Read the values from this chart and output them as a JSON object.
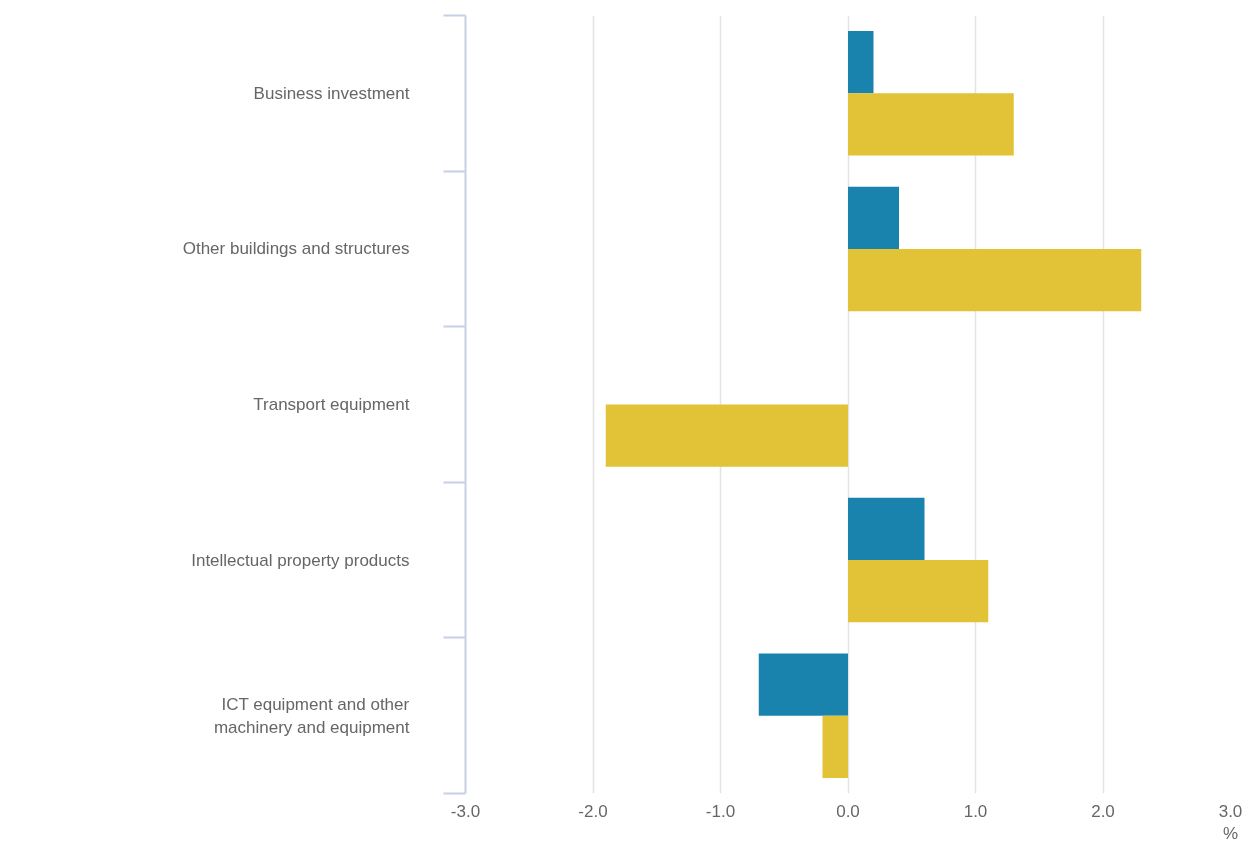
{
  "chart_data": {
    "type": "bar",
    "orientation": "horizontal",
    "xlabel": "%",
    "categories": [
      "Business investment",
      "Other buildings and structures",
      "Transport equipment",
      "Intellectual property products",
      "ICT equipment and other machinery and equipment"
    ],
    "series": [
      {
        "color": "#1a83ad",
        "values": [
          0.2,
          0.4,
          0,
          0.6,
          -0.7
        ]
      },
      {
        "color": "#e2c236",
        "values": [
          1.3,
          2.3,
          -1.9,
          1.1,
          -0.2
        ]
      }
    ],
    "xlim": [
      -3,
      3
    ],
    "xticks": [
      {
        "value": -3,
        "label": "-3.0"
      },
      {
        "value": -2,
        "label": "-2.0"
      },
      {
        "value": -1,
        "label": "-1.0"
      },
      {
        "value": 0,
        "label": "0.0"
      },
      {
        "value": 1,
        "label": "1.0"
      },
      {
        "value": 2,
        "label": "2.0"
      },
      {
        "value": 3,
        "label": "3.0"
      }
    ],
    "grid": "x"
  }
}
